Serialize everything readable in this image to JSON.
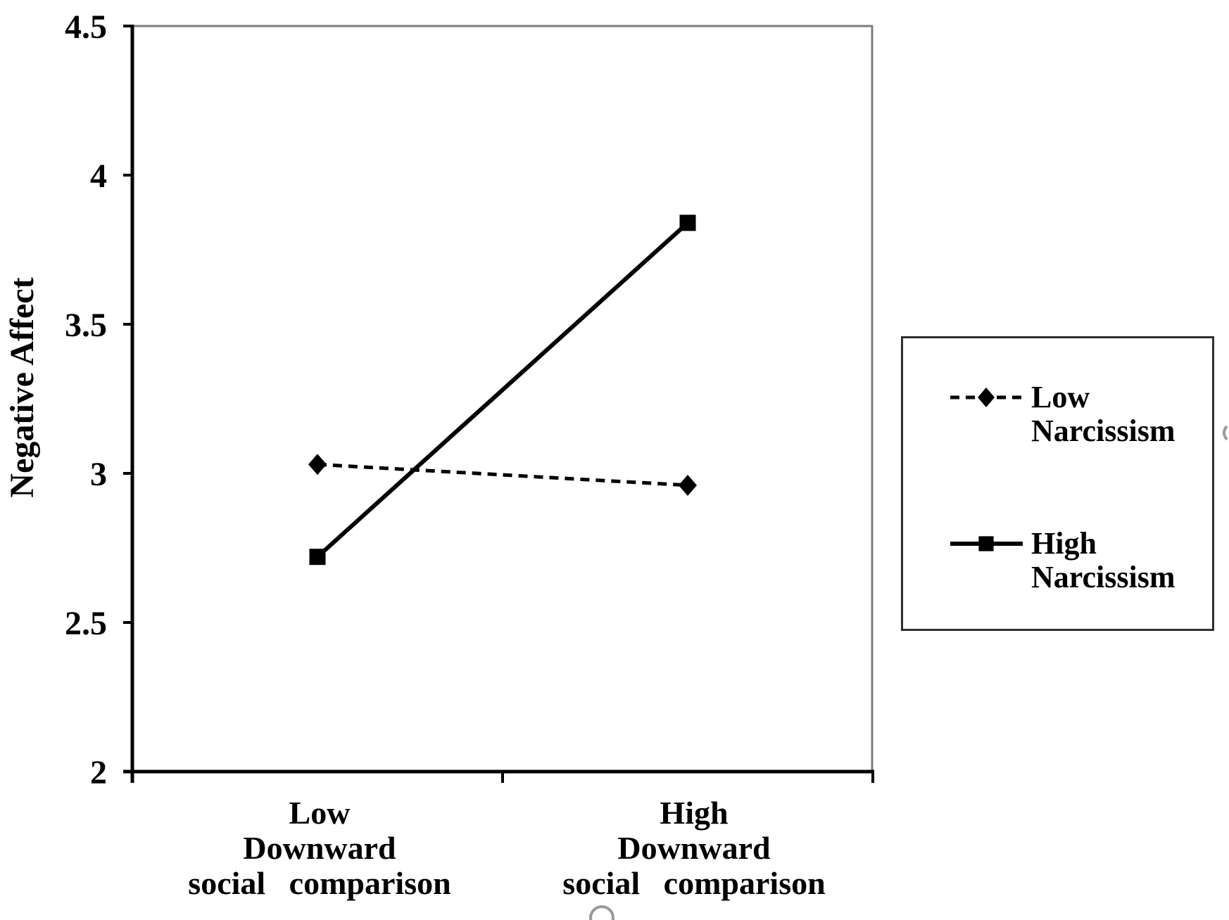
{
  "chart_data": {
    "type": "line",
    "title": "",
    "xlabel": "",
    "ylabel": "Negative Affect",
    "categories": [
      {
        "lines": [
          "Low",
          "Downward",
          "social comparison"
        ]
      },
      {
        "lines": [
          "High",
          "Downward",
          "social comparison"
        ]
      }
    ],
    "series": [
      {
        "name": "Low Narcissism",
        "label_lines": [
          "Low",
          "Narcissism"
        ],
        "values": [
          3.03,
          2.96
        ],
        "line_style": "dashed",
        "marker": "diamond",
        "color": "#000000"
      },
      {
        "name": "High Narcissism",
        "label_lines": [
          "High",
          "Narcissism"
        ],
        "values": [
          2.72,
          3.84
        ],
        "line_style": "solid",
        "marker": "square",
        "color": "#000000"
      }
    ],
    "ylim": [
      2,
      4.5
    ],
    "y_ticks": [
      2,
      2.5,
      3,
      3.5,
      4,
      4.5
    ],
    "y_tick_labels": [
      "2",
      "2.5",
      "3",
      "3.5",
      "4",
      "4.5"
    ],
    "grid": false,
    "legend_position": "right-outside"
  },
  "colors": {
    "ink": "#000000",
    "frame_gray": "#7d7d7d",
    "legend_border": "#2f2f2f",
    "artifact_gray": "#9a9a9a",
    "background": "#ffffff"
  }
}
